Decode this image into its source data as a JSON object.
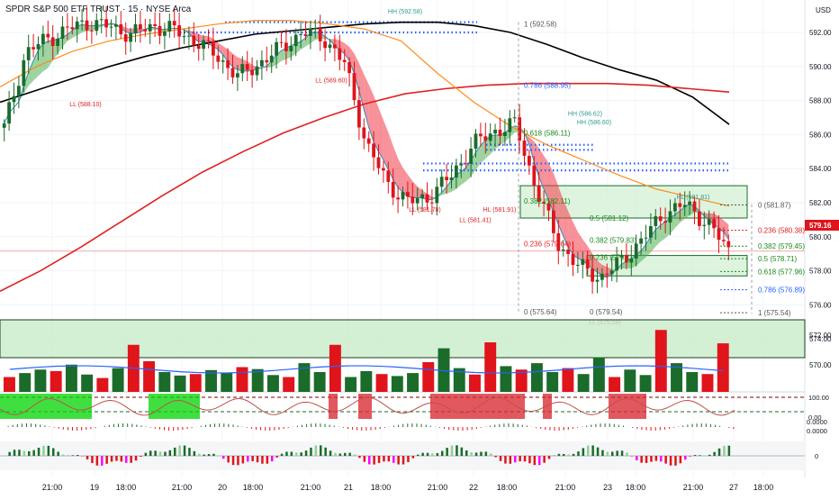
{
  "header": {
    "title": "SPDR S&P 500 ETF TRUST · 15 · NYSE Arca",
    "currency": "USD"
  },
  "colors": {
    "bull": "#1b6b2b",
    "bear": "#e0141b",
    "ema_slow": "#000000",
    "ma_red": "#e02020",
    "ema_orange": "#ff8c1a",
    "cloud_green": "#4caf50",
    "cloud_red": "#f23645",
    "fib_green": "#1b8a1b",
    "fib_red": "#e02020",
    "fib_blue": "#2962ff",
    "fib_gray": "#555555",
    "volume_ma": "#2962ff",
    "last_price_bg": "#e0141b"
  },
  "chart_data": {
    "type": "candlestick",
    "timeframe": "15",
    "y_axis": {
      "ticks": [
        "592.00",
        "590.00",
        "588.00",
        "586.00",
        "584.00",
        "582.00",
        "580.00",
        "578.00",
        "576.00",
        "574.00",
        "572.00",
        "570.00"
      ],
      "last_price": "579.16"
    },
    "x_axis": {
      "ticks": [
        "21:00",
        "19",
        "18:00",
        "21:00",
        "20",
        "18:00",
        "21:00",
        "21",
        "18:00",
        "21:00",
        "22",
        "18:00",
        "21:00",
        "23",
        "18:00",
        "21:00",
        "27",
        "18:00"
      ]
    },
    "price_path": [
      586.4,
      590.8,
      591.6,
      592.2,
      592.6,
      592.3,
      591.9,
      592.4,
      592.1,
      591.5,
      590.6,
      589.4,
      590.2,
      591.1,
      592.0,
      591.7,
      590.1,
      585.4,
      583.1,
      582.0,
      582.4,
      583.6,
      585.4,
      586.2,
      586.6,
      582.7,
      579.6,
      578.2,
      577.6,
      578.6,
      579.9,
      581.4,
      581.9,
      580.8,
      579.2
    ],
    "series": [
      {
        "name": "EMA (black)",
        "values": [
          587.9,
          588.6,
          589.3,
          590.0,
          590.6,
          591.1,
          591.5,
          591.9,
          592.1,
          592.3,
          592.5,
          592.6,
          592.6,
          592.4,
          592.0,
          591.3,
          590.5,
          589.8,
          589.2,
          588.2,
          586.6
        ]
      },
      {
        "name": "MA (red)",
        "values": [
          576.8,
          578.0,
          579.4,
          580.9,
          582.4,
          583.8,
          585.0,
          586.1,
          587.0,
          587.8,
          588.4,
          588.7,
          588.9,
          589.0,
          589.0,
          589.0,
          588.9,
          588.7,
          588.5
        ]
      },
      {
        "name": "EMA (orange)",
        "values": [
          588.8,
          590.0,
          590.9,
          591.5,
          591.9,
          592.2,
          592.5,
          592.7,
          592.7,
          592.5,
          592.2,
          591.5,
          589.6,
          587.9,
          586.5,
          585.4,
          584.5,
          583.6,
          582.8,
          582.3,
          581.8
        ]
      }
    ],
    "fib_levels": {
      "left": [
        {
          "label": "1 (592.58)"
        },
        {
          "label": "0.786 (588.95)"
        },
        {
          "label": "0.618 (586.11)"
        },
        {
          "label": "0.382 (582.11)"
        },
        {
          "label": "0.5 (581.12)"
        },
        {
          "label": "0.382 (579.83)"
        },
        {
          "label": "0.236 (579.64)"
        },
        {
          "label": "0 (575.64)"
        },
        {
          "label": "0.236 (579.1)"
        },
        {
          "label": "0 (579.54)"
        }
      ],
      "right": [
        {
          "label": "0 (581.87)"
        },
        {
          "label": "0.236 (580.38)"
        },
        {
          "label": "0.382 (579.45)"
        },
        {
          "label": "0.5 (578.71)"
        },
        {
          "label": "0.618 (577.96)"
        },
        {
          "label": "0.786 (576.89)"
        },
        {
          "label": "1 (575.54)"
        }
      ]
    },
    "annotations": [
      {
        "text": "LL (588.10)"
      },
      {
        "text": "LL (589.60)"
      },
      {
        "text": "LL (581.78)"
      },
      {
        "text": "LL (581.41)"
      },
      {
        "text": "HL (581.91)"
      },
      {
        "text": "HH (592.58)"
      },
      {
        "text": "HH (586.62)"
      },
      {
        "text": "LL (575.59)"
      },
      {
        "text": "HL (581.81)"
      },
      {
        "text": "HH (586.60)"
      }
    ],
    "volume": {
      "ticks": [
        "572.00",
        "570.00"
      ],
      "bars": [
        0.3,
        0.38,
        0.45,
        0.42,
        0.55,
        0.35,
        0.28,
        0.48,
        0.95,
        0.62,
        0.4,
        0.33,
        0.36,
        0.44,
        0.38,
        0.5,
        0.46,
        0.34,
        0.3,
        0.58,
        0.4,
        0.95,
        0.3,
        0.42,
        0.36,
        0.32,
        0.38,
        0.6,
        0.88,
        0.48,
        0.35,
        1.0,
        0.52,
        0.45,
        0.58,
        0.4,
        0.48,
        0.36,
        0.7,
        0.3,
        0.45,
        0.34,
        1.25,
        0.58,
        0.4,
        0.36,
        0.98
      ]
    },
    "oscillator1": {
      "ticks": [
        "100.00",
        "0.00"
      ]
    },
    "oscillator2": {
      "ticks": [
        "0.0000",
        "0.0000"
      ]
    },
    "oscillator3": {
      "ticks": [
        "0"
      ]
    }
  }
}
